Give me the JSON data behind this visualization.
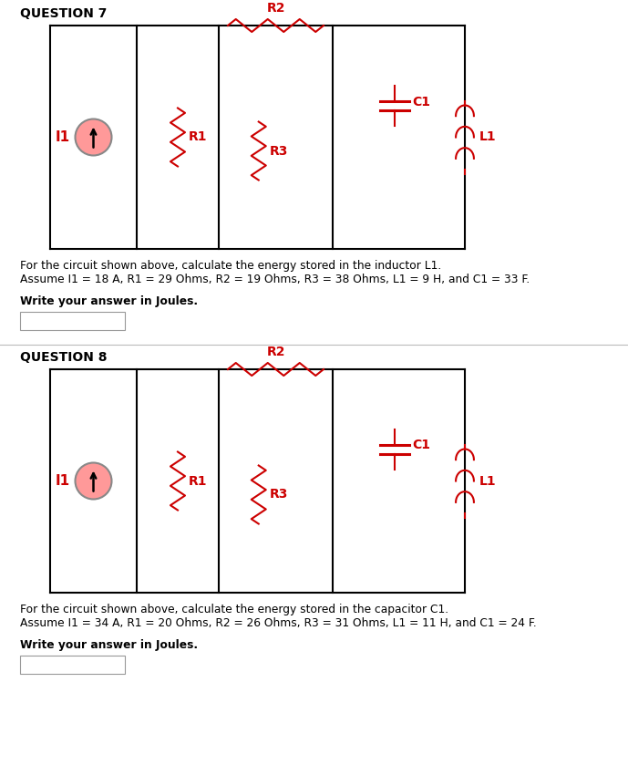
{
  "q7_title": "QUESTION 7",
  "q8_title": "QUESTION 8",
  "q7_text1": "For the circuit shown above, calculate the energy stored in the inductor L1.",
  "q7_text2": "Assume I1 = 18 A, R1 = 29 Ohms, R2 = 19 Ohms, R3 = 38 Ohms, L1 = 9 H, and C1 = 33 F.",
  "q7_write": "Write your answer in Joules.",
  "q8_text1": "For the circuit shown above, calculate the energy stored in the capacitor C1.",
  "q8_text2": "Assume I1 = 34 A, R1 = 20 Ohms, R2 = 26 Ohms, R3 = 31 Ohms, L1 = 11 H, and C1 = 24 F.",
  "q8_write": "Write your answer in Joules.",
  "comp_color": "#CC0000",
  "line_color": "#000000",
  "source_fill": "#FF9999",
  "bg_color": "#FFFFFF"
}
